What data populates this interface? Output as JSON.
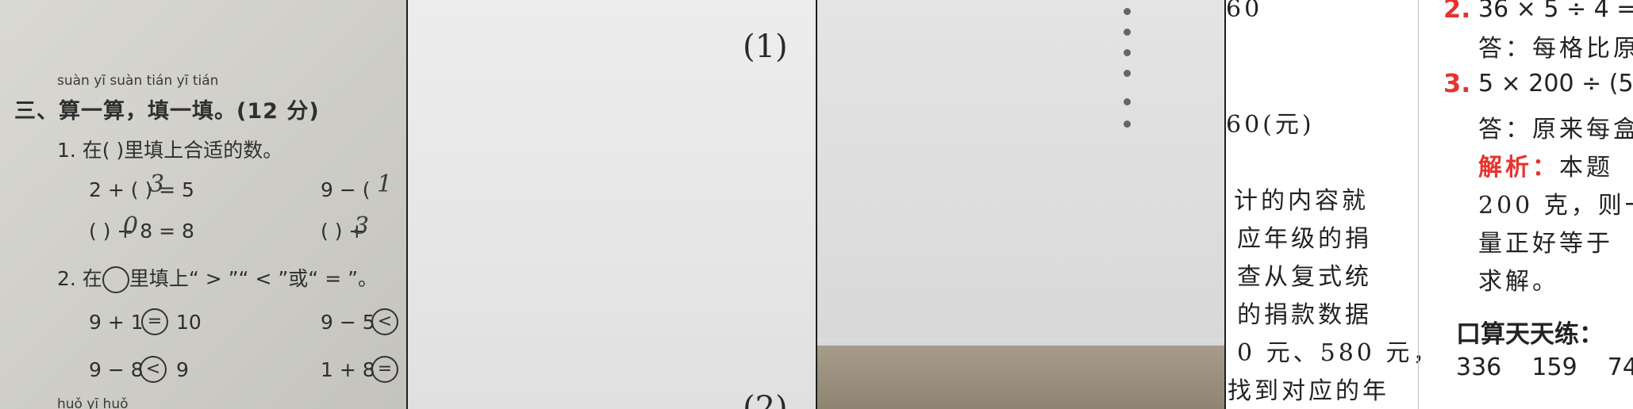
{
  "panel1": {
    "pinyin": "suàn yī suàn  tián yī tián",
    "heading": "三、算一算，填一填。(12 分)",
    "q1": "1.  在(       )里填上合适的数。",
    "q1_rows": [
      {
        "left": "2 + (        ) = 5",
        "left_answer": "3",
        "right": "9 − (",
        "right_answer": "1"
      },
      {
        "left": "(        ) + 8 = 8",
        "left_answer": "0",
        "right": "(        ) +",
        "right_answer": "3"
      }
    ],
    "q2_prefix": "2.  在",
    "q2_suffix": "里填上“ > ”“ < ”或“ = ”。",
    "q2_rows": [
      {
        "left": "9 + 1",
        "left_mark": "=",
        "left_end": "10",
        "right": "9 − 5",
        "right_mark": "<"
      },
      {
        "left": "9 − 8",
        "left_mark": "<",
        "left_end": "9",
        "right": "1 + 8",
        "right_mark": "="
      }
    ],
    "bottom_pinyin": "huǒ yī huǒ"
  },
  "panel2": {
    "label_top": "(1)",
    "label_bottom": "(2)"
  },
  "panel3": {
    "dot_count": 6
  },
  "panel4": {
    "left_lines": [
      "60",
      "60(元)",
      "计的内容就",
      "应年级的捐",
      "查从复式统",
      "的捐款数据",
      "0 元、580 元，",
      "找到对应的年"
    ],
    "num2": "2.",
    "line2": "36 × 5 ÷ 4 =",
    "ans2": "答：每格比原",
    "num3": "3.",
    "line3": "5 × 200 ÷ (5",
    "ans3": "答：原来每盒",
    "analysis_label": "解析：",
    "analysis_text": "本题",
    "lines_more": [
      "200 克，则一",
      "量正好等于",
      "求解。"
    ],
    "practice_title": "口算天天练：",
    "practice_nums": "336    159    74"
  }
}
